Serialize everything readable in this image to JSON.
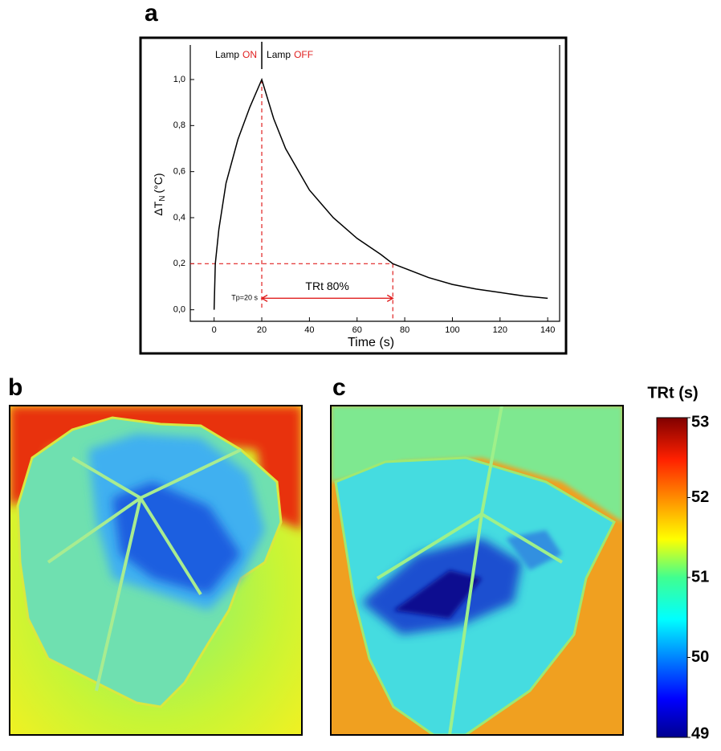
{
  "panels": {
    "a": "a",
    "b": "b",
    "c": "c"
  },
  "chart_data": {
    "type": "line",
    "x": [
      0,
      0.5,
      2,
      5,
      10,
      15,
      20,
      25,
      30,
      40,
      50,
      60,
      70,
      75,
      80,
      90,
      100,
      110,
      120,
      130,
      140
    ],
    "values": [
      0,
      0.2,
      0.35,
      0.55,
      0.74,
      0.88,
      1.0,
      0.83,
      0.7,
      0.52,
      0.4,
      0.31,
      0.24,
      0.2,
      0.18,
      0.14,
      0.11,
      0.09,
      0.075,
      0.06,
      0.05
    ],
    "color": "#000000",
    "xlabel": "Time (s)",
    "ylabel": {
      "symbol": "ΔT",
      "subscript": "N",
      "unit": "(°C)"
    },
    "xlim": [
      -10,
      145
    ],
    "ylim": [
      -0.05,
      1.15
    ],
    "xticks": [
      0,
      20,
      40,
      60,
      80,
      100,
      120,
      140
    ],
    "yticks": [
      {
        "value": 0,
        "label": "0,0"
      },
      {
        "value": 0.2,
        "label": "0,2"
      },
      {
        "value": 0.4,
        "label": "0,4"
      },
      {
        "value": 0.6,
        "label": "0,6"
      },
      {
        "value": 0.8,
        "label": "0,8"
      },
      {
        "value": 1.0,
        "label": "1,0"
      }
    ],
    "annotations": {
      "lamp_on_label": "Lamp",
      "lamp_on_state": "ON",
      "lamp_off_label": "Lamp",
      "lamp_off_state": "OFF",
      "arrow_label": "TRt 80%",
      "tp_label": "Tp=20 s"
    },
    "markers": {
      "tp": 20,
      "trt_end": 75,
      "threshold": 0.2
    },
    "marker_color": "#e02020"
  },
  "colorbar": {
    "title": "TRt (s)",
    "lim": [
      49,
      53
    ],
    "ticks": [
      49,
      50,
      51,
      52,
      53
    ]
  }
}
